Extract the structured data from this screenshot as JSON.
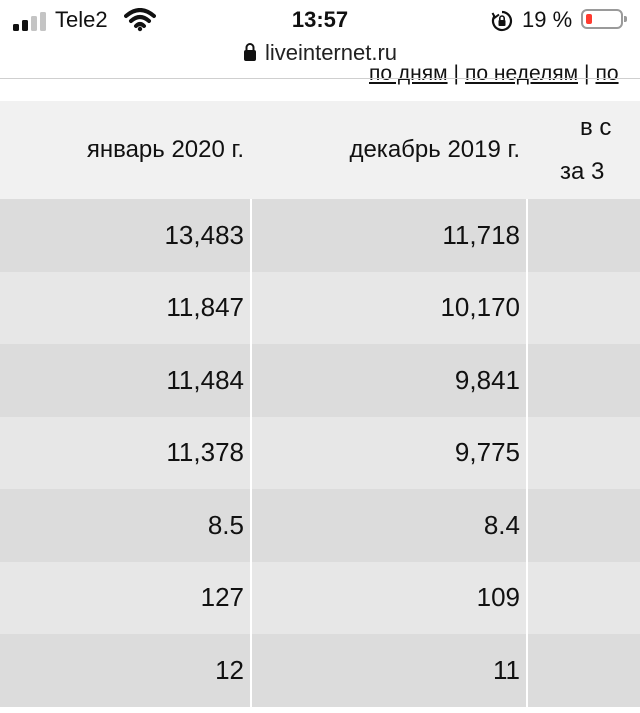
{
  "status": {
    "carrier": "Tele2",
    "time": "13:57",
    "battery_percent": "19 %",
    "battery_level": 0.19,
    "battery_color": "#ff3b30"
  },
  "browser": {
    "url": "liveinternet.ru",
    "lock_icon": "padlock-icon"
  },
  "nav_links": {
    "by_days": "по дням",
    "by_weeks": "по неделям",
    "more": "по"
  },
  "table": {
    "headers": [
      "январь 2020 г.",
      "декабрь 2019 г.",
      "в с",
      "за 3"
    ],
    "rows": [
      [
        "13,483",
        "11,718",
        ""
      ],
      [
        "11,847",
        "10,170",
        ""
      ],
      [
        "11,484",
        "9,841",
        ""
      ],
      [
        "11,378",
        "9,775",
        ""
      ],
      [
        "8.5",
        "8.4",
        ""
      ],
      [
        "127",
        "109",
        ""
      ],
      [
        "12",
        "11",
        ""
      ]
    ]
  }
}
